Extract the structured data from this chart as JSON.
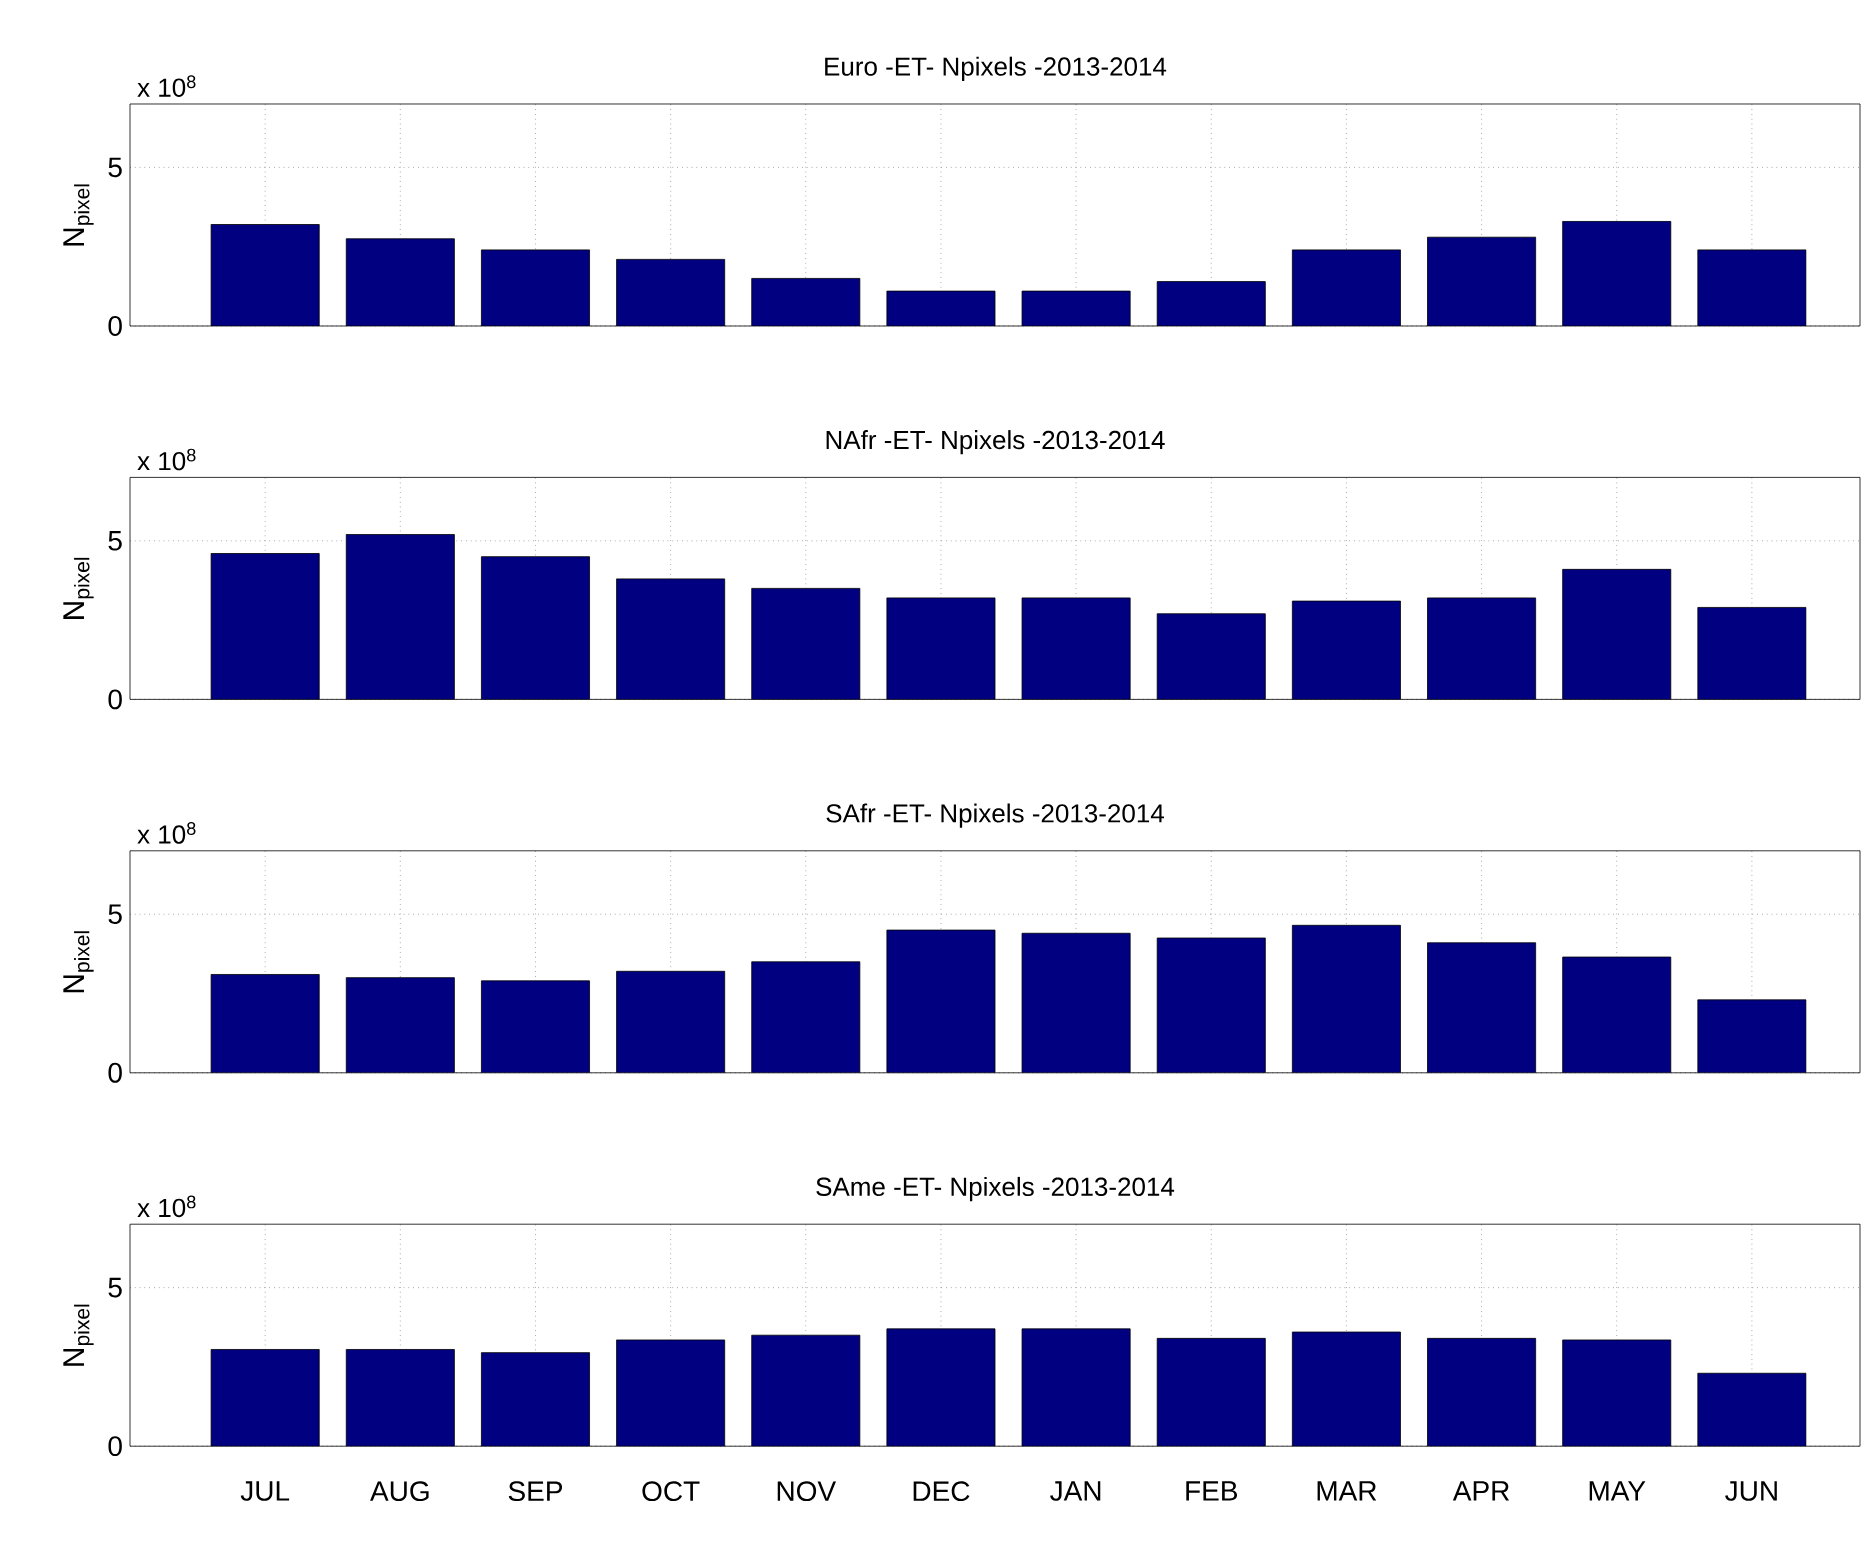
{
  "chart_data": [
    {
      "type": "bar",
      "title": "Euro -ET- Npixels -2013-2014",
      "ylabel": "N$_{pixel}$",
      "annotations": [
        "x 10$^{8}$"
      ],
      "categories": [
        null,
        null,
        null,
        null,
        null,
        null,
        null,
        null,
        null,
        null,
        null,
        null
      ],
      "values": [
        3.2,
        2.75,
        2.4,
        2.1,
        1.5,
        1.1,
        1.1,
        1.4,
        2.4,
        2.8,
        3.3,
        2.4
      ],
      "color": "#000080",
      "ylim": [
        0,
        7
      ],
      "yticks": [
        0,
        5
      ],
      "grid": true
    },
    {
      "type": "bar",
      "title": "NAfr -ET- Npixels -2013-2014",
      "ylabel": "N$_{pixel}$",
      "annotations": [
        "x 10$^{8}$"
      ],
      "categories": [
        null,
        null,
        null,
        null,
        null,
        null,
        null,
        null,
        null,
        null,
        null,
        null
      ],
      "values": [
        4.6,
        5.2,
        4.5,
        3.8,
        3.5,
        3.2,
        3.2,
        2.7,
        3.1,
        3.2,
        4.1,
        2.9
      ],
      "color": "#000080",
      "ylim": [
        0,
        7
      ],
      "yticks": [
        0,
        5
      ],
      "grid": true
    },
    {
      "type": "bar",
      "title": "SAfr -ET- Npixels -2013-2014",
      "ylabel": "N$_{pixel}$",
      "annotations": [
        "x 10$^{8}$"
      ],
      "categories": [
        null,
        null,
        null,
        null,
        null,
        null,
        null,
        null,
        null,
        null,
        null,
        null
      ],
      "values": [
        3.1,
        3.0,
        2.9,
        3.2,
        3.5,
        4.5,
        4.4,
        4.25,
        4.65,
        4.1,
        3.65,
        2.3
      ],
      "color": "#000080",
      "ylim": [
        0,
        7
      ],
      "yticks": [
        0,
        5
      ],
      "grid": true
    },
    {
      "type": "bar",
      "title": "SAme -ET- Npixels -2013-2014",
      "ylabel": "N$_{pixel}$",
      "annotations": [
        "x 10$^{8}$"
      ],
      "categories": [
        "JUL",
        "AUG",
        "SEP",
        "OCT",
        "NOV",
        "DEC",
        "JAN",
        "FEB",
        "MAR",
        "APR",
        "MAY",
        "JUN"
      ],
      "values": [
        3.05,
        3.05,
        2.95,
        3.35,
        3.5,
        3.7,
        3.7,
        3.4,
        3.6,
        3.4,
        3.35,
        2.3
      ],
      "color": "#000080",
      "ylim": [
        0,
        7
      ],
      "yticks": [
        0,
        5
      ],
      "grid": true
    }
  ]
}
